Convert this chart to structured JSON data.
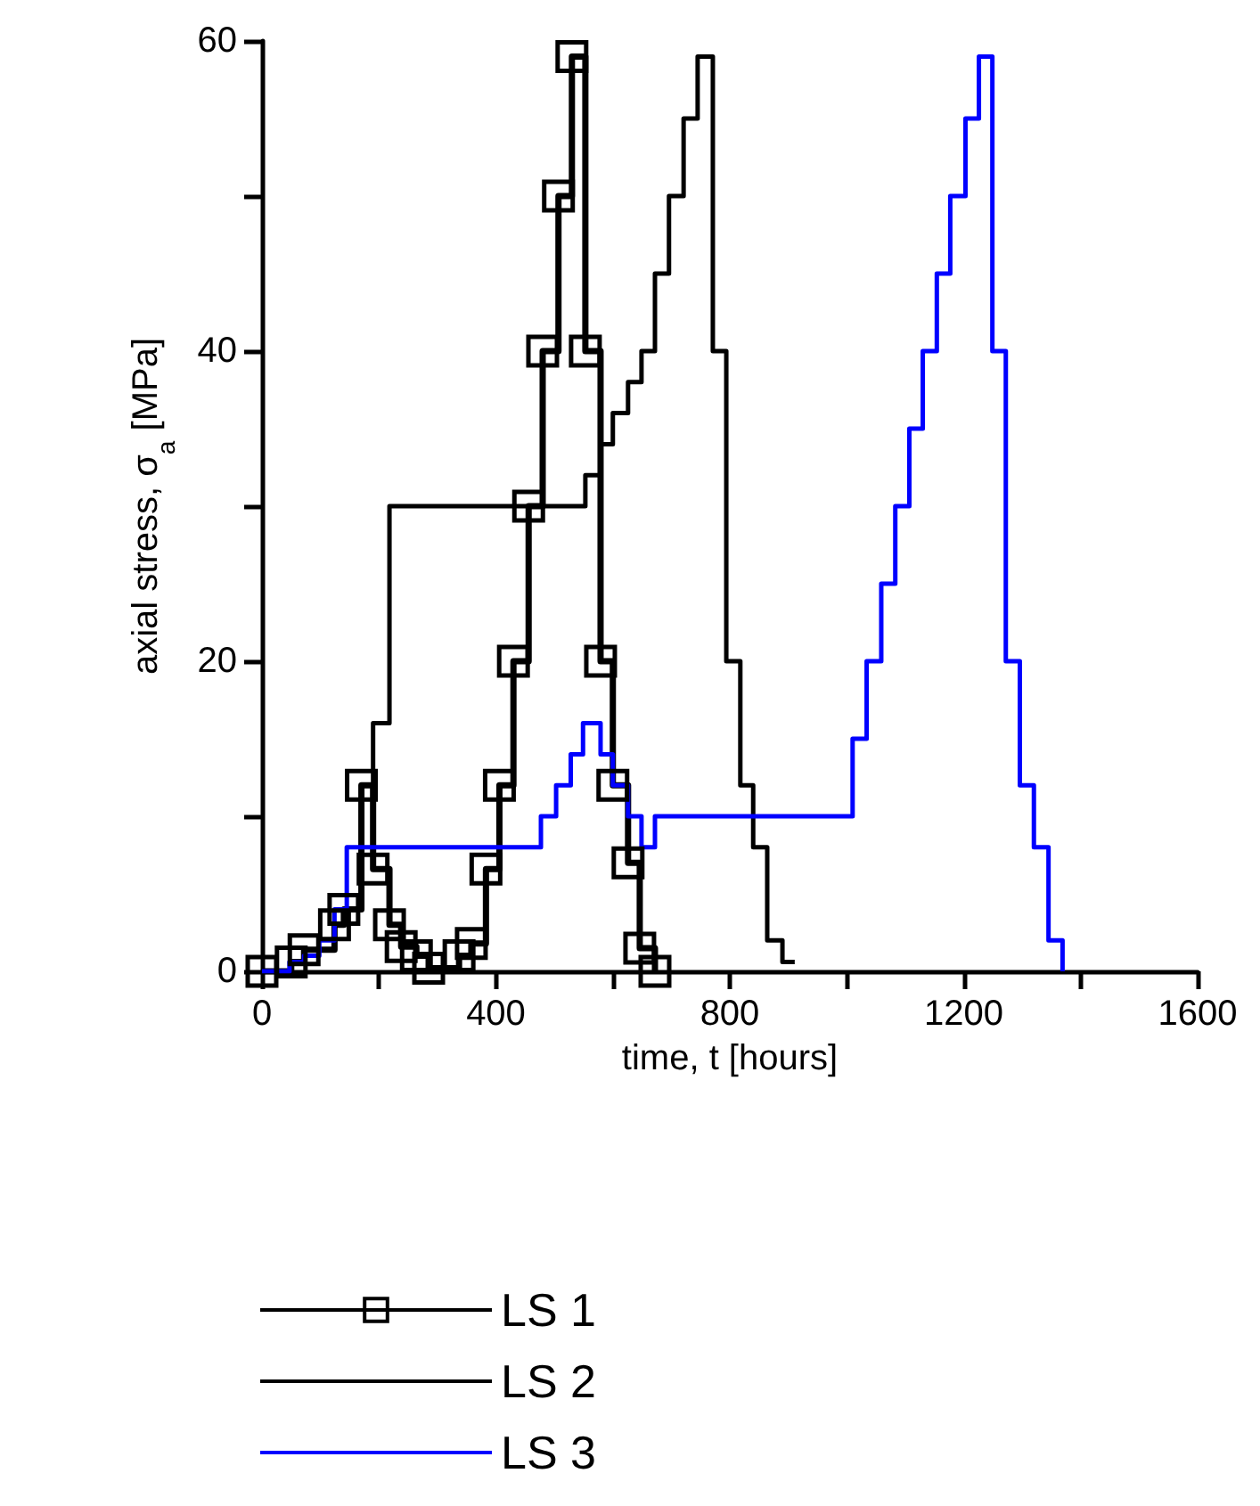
{
  "chart_data": {
    "type": "step",
    "xlabel": "time, t [hours]",
    "ylabel": "axial stress, σ$_{a}$ [MPa]",
    "xlim": [
      0,
      1600
    ],
    "xticks": [
      0,
      {
        "value": 200,
        "label": null
      },
      400,
      {
        "value": 600,
        "label": null
      },
      800,
      {
        "value": 1000,
        "label": null
      },
      1200,
      {
        "value": 1400,
        "label": null
      },
      1600
    ],
    "ylim": [
      0,
      60
    ],
    "yticks": [
      0,
      {
        "value": 10,
        "label": null
      },
      20,
      {
        "value": 30,
        "label": null
      },
      40,
      {
        "value": 50,
        "label": null
      },
      60
    ],
    "grid": false,
    "legend": "bottom",
    "series": [
      {
        "name": "LS 1",
        "color": "#000000",
        "marker": "square",
        "x": [
          0,
          50,
          72,
          124,
          140,
          170,
          190,
          218,
          238,
          264,
          285,
          337,
          358,
          383,
          406,
          430,
          456,
          480,
          507,
          530,
          553,
          579,
          600,
          626,
          646,
          672
        ],
        "values": [
          0,
          0.6,
          1.4,
          3,
          4,
          12,
          6.6,
          3,
          1.6,
          1,
          0.2,
          1,
          1.8,
          6.6,
          12,
          20,
          30,
          40,
          50,
          59,
          40,
          20,
          12,
          7,
          1.5,
          0
        ]
      },
      {
        "name": "LS 2",
        "color": "#000000",
        "x": [
          0,
          50,
          72,
          124,
          140,
          170,
          190,
          218,
          553,
          579,
          600,
          626,
          649,
          672,
          696,
          721,
          745,
          771,
          794,
          818,
          840,
          864,
          890,
          911
        ],
        "values": [
          0,
          0.6,
          1.4,
          3,
          4,
          12,
          16,
          30,
          32,
          34,
          36,
          38,
          40,
          45,
          50,
          55,
          59,
          40,
          20,
          12,
          8,
          2,
          0.6,
          0.6
        ]
      },
      {
        "name": "LS 3",
        "color": "#0000ff",
        "x": [
          0,
          47,
          72,
          98,
          124,
          145,
          477,
          503,
          528,
          549,
          579,
          600,
          626,
          649,
          672,
          1010,
          1034,
          1059,
          1083,
          1107,
          1130,
          1154,
          1177,
          1203,
          1226,
          1249,
          1272,
          1296,
          1320,
          1345,
          1369
        ],
        "values": [
          0,
          0.6,
          1,
          2,
          4,
          8,
          10,
          12,
          14,
          16,
          14,
          12,
          10,
          8,
          10,
          15,
          20,
          25,
          30,
          35,
          40,
          45,
          50,
          55,
          59,
          40,
          20,
          12,
          8,
          2,
          0
        ]
      }
    ]
  }
}
